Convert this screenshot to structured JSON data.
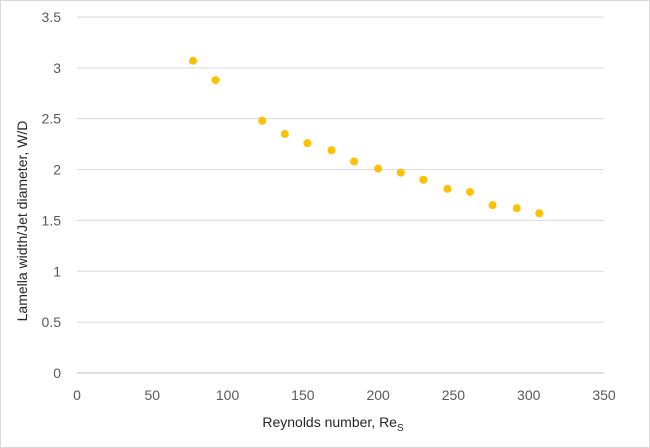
{
  "chart_data": {
    "type": "scatter",
    "title": "",
    "xlabel": "Reynolds number,  Re",
    "xlabel_subscript": "S",
    "ylabel": "Lamella width/Jet diameter,  W/D",
    "xlim": [
      0,
      350
    ],
    "ylim": [
      0,
      3.5
    ],
    "x_ticks": [
      0,
      50,
      100,
      150,
      200,
      250,
      300,
      350
    ],
    "y_ticks": [
      0,
      0.5,
      1,
      1.5,
      2,
      2.5,
      3,
      3.5
    ],
    "x_tick_labels": [
      "0",
      "50",
      "100",
      "150",
      "200",
      "250",
      "300",
      "350"
    ],
    "y_tick_labels": [
      "0",
      "0.5",
      "1",
      "1.5",
      "2",
      "2.5",
      "3",
      "3.5"
    ],
    "grid": "horizontal",
    "legend": "none",
    "marker_color": "#FFC000",
    "series": [
      {
        "x": [
          77,
          92,
          123,
          138,
          153,
          169,
          184,
          200,
          215,
          230,
          246,
          261,
          276,
          292,
          307
        ],
        "y": [
          3.07,
          2.88,
          2.48,
          2.35,
          2.26,
          2.19,
          2.08,
          2.01,
          1.97,
          1.9,
          1.81,
          1.78,
          1.65,
          1.62,
          1.57
        ]
      }
    ]
  }
}
